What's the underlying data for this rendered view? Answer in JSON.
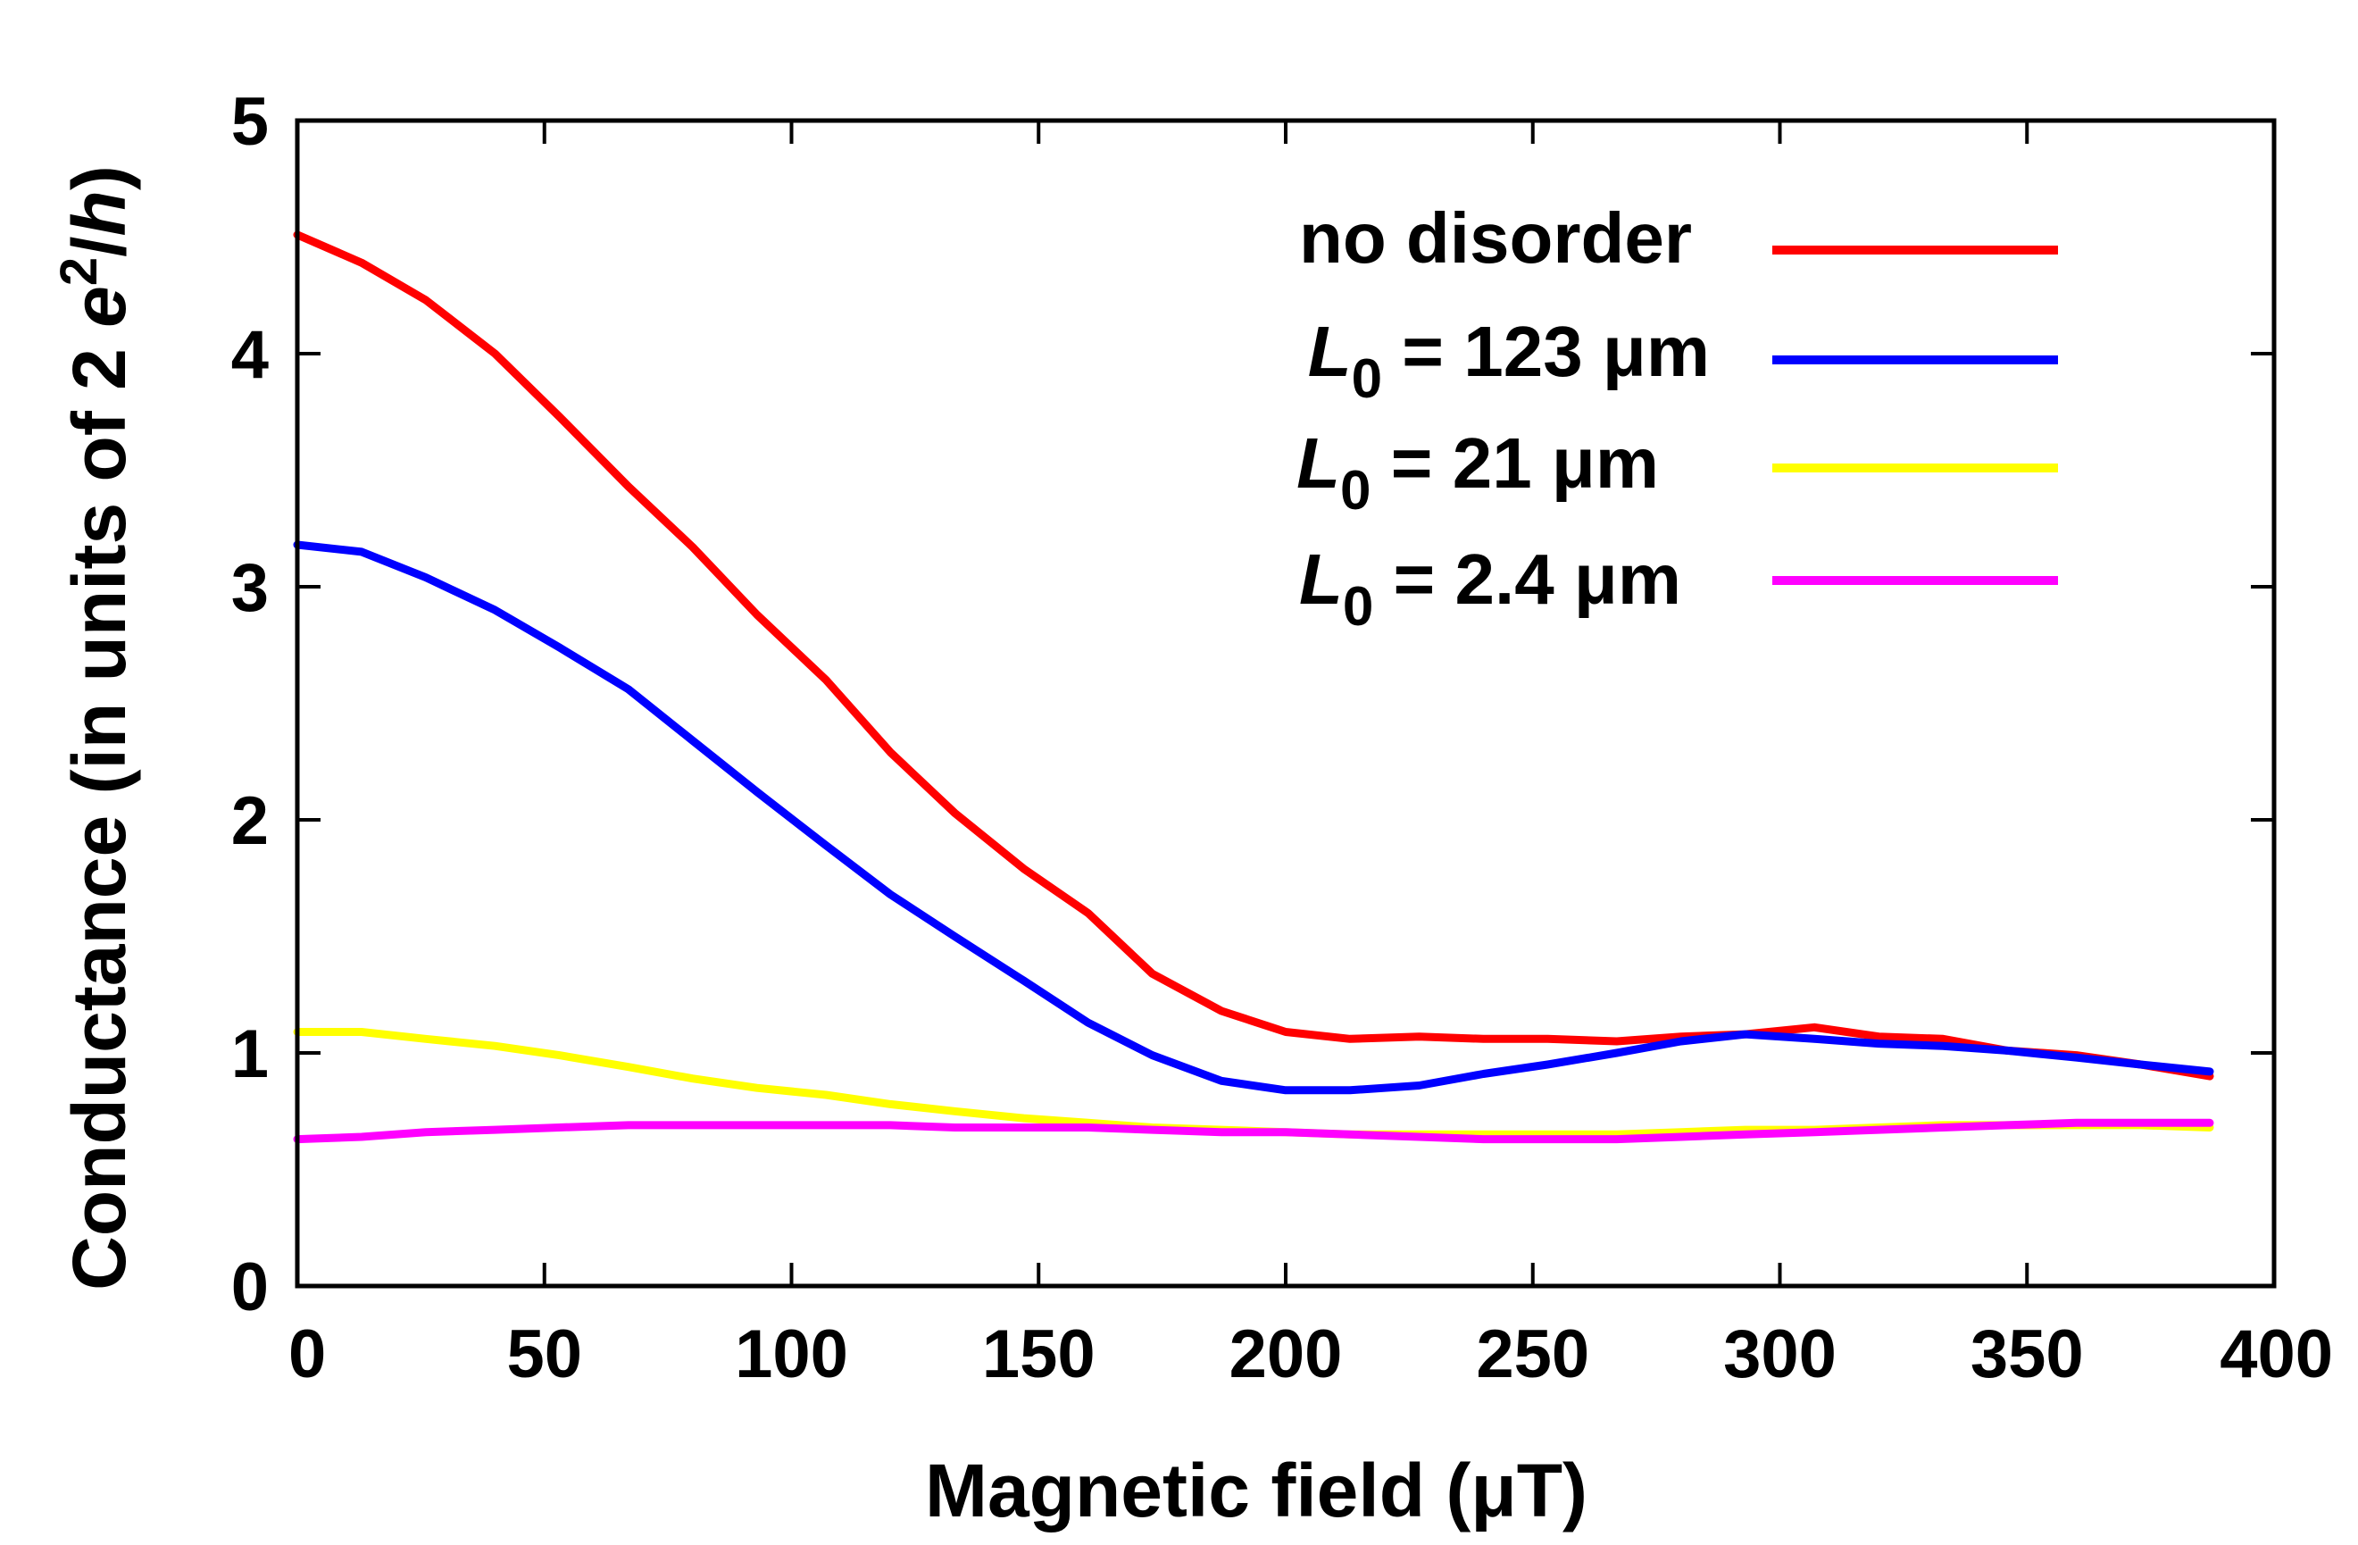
{
  "chart_data": {
    "type": "line",
    "title": "",
    "xlabel": "Magnetic field  (μT)",
    "ylabel_parts": {
      "main": "Conductance  (in units of 2 ",
      "e": "e",
      "sup": "2",
      "slash": "/",
      "h": "h",
      "close": ")"
    },
    "xlim": [
      0,
      400
    ],
    "ylim": [
      0,
      5
    ],
    "xticks": [
      0,
      50,
      100,
      150,
      200,
      250,
      300,
      350,
      400
    ],
    "yticks": [
      0,
      1,
      2,
      3,
      4,
      5
    ],
    "legend_position": "top-right",
    "x": [
      0,
      13,
      26,
      40,
      53,
      67,
      80,
      93,
      107,
      120,
      133,
      147,
      160,
      173,
      187,
      200,
      213,
      227,
      240,
      253,
      267,
      280,
      293,
      307,
      320,
      333,
      346,
      360,
      373,
      387
    ],
    "series": [
      {
        "name": "no disorder",
        "legend": {
          "italic": "",
          "sub": "",
          "rest": "no disorder"
        },
        "color": "#ff0000",
        "values": [
          4.51,
          4.39,
          4.23,
          4.0,
          3.73,
          3.43,
          3.17,
          2.88,
          2.6,
          2.29,
          2.03,
          1.79,
          1.6,
          1.34,
          1.18,
          1.09,
          1.06,
          1.07,
          1.06,
          1.06,
          1.05,
          1.07,
          1.08,
          1.11,
          1.07,
          1.06,
          1.01,
          0.99,
          0.95,
          0.9
        ]
      },
      {
        "name": "L0 = 123 μm",
        "legend": {
          "italic": "L",
          "sub": "0",
          "rest": " = 123 μm"
        },
        "color": "#0000ff",
        "values": [
          3.18,
          3.15,
          3.04,
          2.9,
          2.74,
          2.56,
          2.34,
          2.12,
          1.89,
          1.68,
          1.5,
          1.31,
          1.13,
          0.99,
          0.88,
          0.84,
          0.84,
          0.86,
          0.91,
          0.95,
          1.0,
          1.05,
          1.08,
          1.06,
          1.04,
          1.03,
          1.01,
          0.98,
          0.95,
          0.92
        ]
      },
      {
        "name": "L0 = 21 μm",
        "legend": {
          "italic": "L",
          "sub": "0",
          "rest": " = 21 μm"
        },
        "color": "#ffff00",
        "values": [
          1.09,
          1.09,
          1.06,
          1.03,
          0.99,
          0.94,
          0.89,
          0.85,
          0.82,
          0.78,
          0.75,
          0.72,
          0.7,
          0.68,
          0.67,
          0.66,
          0.65,
          0.65,
          0.65,
          0.65,
          0.65,
          0.66,
          0.67,
          0.67,
          0.68,
          0.69,
          0.69,
          0.69,
          0.69,
          0.68
        ]
      },
      {
        "name": "L0 = 2.4 μm",
        "legend": {
          "italic": "L",
          "sub": "0",
          "rest": " = 2.4 μm"
        },
        "color": "#ff00ff",
        "values": [
          0.63,
          0.64,
          0.66,
          0.67,
          0.68,
          0.69,
          0.69,
          0.69,
          0.69,
          0.69,
          0.68,
          0.68,
          0.68,
          0.67,
          0.66,
          0.66,
          0.65,
          0.64,
          0.63,
          0.63,
          0.63,
          0.64,
          0.65,
          0.66,
          0.67,
          0.68,
          0.69,
          0.7,
          0.7,
          0.7
        ]
      }
    ]
  }
}
